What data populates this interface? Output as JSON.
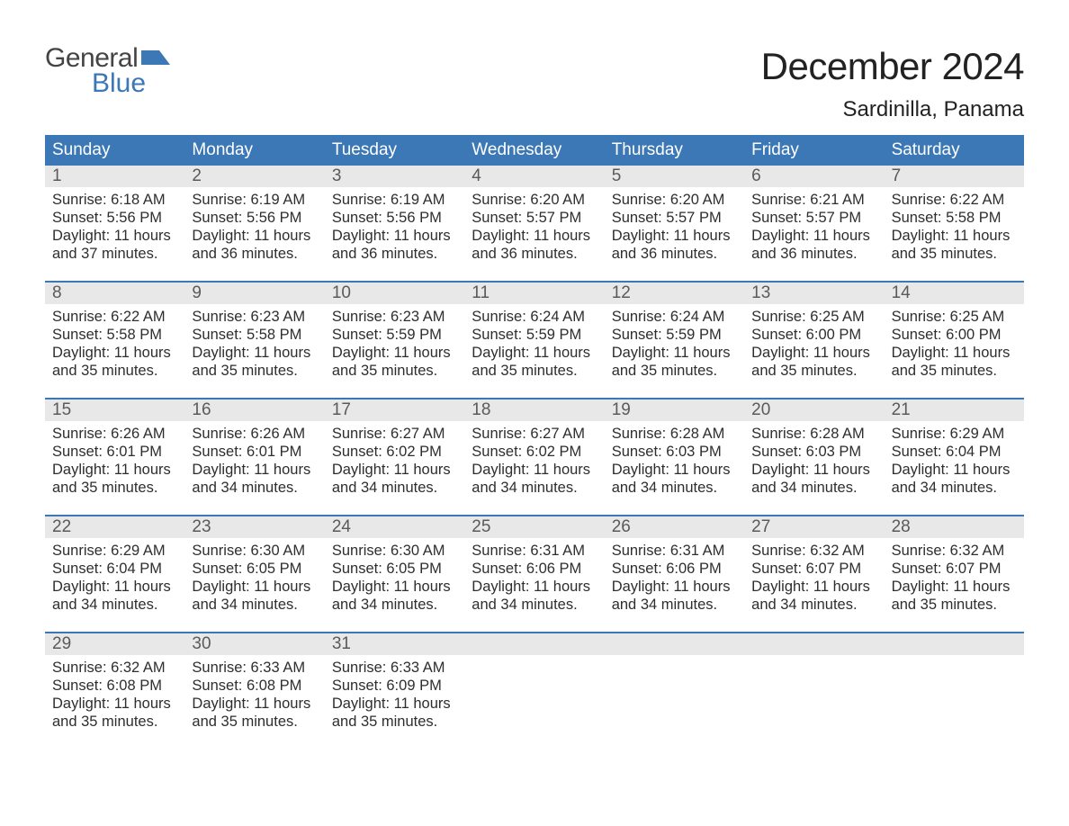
{
  "brand": {
    "line1": "General",
    "line2": "Blue",
    "brand_color": "#3b78b5"
  },
  "title": "December 2024",
  "subtitle": "Sardinilla, Panama",
  "colors": {
    "header_bg": "#3b78b5",
    "header_text": "#ffffff",
    "daynum_bg": "#e8e8e8",
    "daynum_text": "#5a5a5a",
    "body_text": "#2e2e2e",
    "week_divider": "#3b78b5",
    "page_bg": "#ffffff"
  },
  "weekdays": [
    "Sunday",
    "Monday",
    "Tuesday",
    "Wednesday",
    "Thursday",
    "Friday",
    "Saturday"
  ],
  "weeks": [
    [
      {
        "day": "1",
        "sunrise": "6:18 AM",
        "sunset": "5:56 PM",
        "dl1": "11 hours",
        "dl2": "37 minutes."
      },
      {
        "day": "2",
        "sunrise": "6:19 AM",
        "sunset": "5:56 PM",
        "dl1": "11 hours",
        "dl2": "36 minutes."
      },
      {
        "day": "3",
        "sunrise": "6:19 AM",
        "sunset": "5:56 PM",
        "dl1": "11 hours",
        "dl2": "36 minutes."
      },
      {
        "day": "4",
        "sunrise": "6:20 AM",
        "sunset": "5:57 PM",
        "dl1": "11 hours",
        "dl2": "36 minutes."
      },
      {
        "day": "5",
        "sunrise": "6:20 AM",
        "sunset": "5:57 PM",
        "dl1": "11 hours",
        "dl2": "36 minutes."
      },
      {
        "day": "6",
        "sunrise": "6:21 AM",
        "sunset": "5:57 PM",
        "dl1": "11 hours",
        "dl2": "36 minutes."
      },
      {
        "day": "7",
        "sunrise": "6:22 AM",
        "sunset": "5:58 PM",
        "dl1": "11 hours",
        "dl2": "35 minutes."
      }
    ],
    [
      {
        "day": "8",
        "sunrise": "6:22 AM",
        "sunset": "5:58 PM",
        "dl1": "11 hours",
        "dl2": "35 minutes."
      },
      {
        "day": "9",
        "sunrise": "6:23 AM",
        "sunset": "5:58 PM",
        "dl1": "11 hours",
        "dl2": "35 minutes."
      },
      {
        "day": "10",
        "sunrise": "6:23 AM",
        "sunset": "5:59 PM",
        "dl1": "11 hours",
        "dl2": "35 minutes."
      },
      {
        "day": "11",
        "sunrise": "6:24 AM",
        "sunset": "5:59 PM",
        "dl1": "11 hours",
        "dl2": "35 minutes."
      },
      {
        "day": "12",
        "sunrise": "6:24 AM",
        "sunset": "5:59 PM",
        "dl1": "11 hours",
        "dl2": "35 minutes."
      },
      {
        "day": "13",
        "sunrise": "6:25 AM",
        "sunset": "6:00 PM",
        "dl1": "11 hours",
        "dl2": "35 minutes."
      },
      {
        "day": "14",
        "sunrise": "6:25 AM",
        "sunset": "6:00 PM",
        "dl1": "11 hours",
        "dl2": "35 minutes."
      }
    ],
    [
      {
        "day": "15",
        "sunrise": "6:26 AM",
        "sunset": "6:01 PM",
        "dl1": "11 hours",
        "dl2": "35 minutes."
      },
      {
        "day": "16",
        "sunrise": "6:26 AM",
        "sunset": "6:01 PM",
        "dl1": "11 hours",
        "dl2": "34 minutes."
      },
      {
        "day": "17",
        "sunrise": "6:27 AM",
        "sunset": "6:02 PM",
        "dl1": "11 hours",
        "dl2": "34 minutes."
      },
      {
        "day": "18",
        "sunrise": "6:27 AM",
        "sunset": "6:02 PM",
        "dl1": "11 hours",
        "dl2": "34 minutes."
      },
      {
        "day": "19",
        "sunrise": "6:28 AM",
        "sunset": "6:03 PM",
        "dl1": "11 hours",
        "dl2": "34 minutes."
      },
      {
        "day": "20",
        "sunrise": "6:28 AM",
        "sunset": "6:03 PM",
        "dl1": "11 hours",
        "dl2": "34 minutes."
      },
      {
        "day": "21",
        "sunrise": "6:29 AM",
        "sunset": "6:04 PM",
        "dl1": "11 hours",
        "dl2": "34 minutes."
      }
    ],
    [
      {
        "day": "22",
        "sunrise": "6:29 AM",
        "sunset": "6:04 PM",
        "dl1": "11 hours",
        "dl2": "34 minutes."
      },
      {
        "day": "23",
        "sunrise": "6:30 AM",
        "sunset": "6:05 PM",
        "dl1": "11 hours",
        "dl2": "34 minutes."
      },
      {
        "day": "24",
        "sunrise": "6:30 AM",
        "sunset": "6:05 PM",
        "dl1": "11 hours",
        "dl2": "34 minutes."
      },
      {
        "day": "25",
        "sunrise": "6:31 AM",
        "sunset": "6:06 PM",
        "dl1": "11 hours",
        "dl2": "34 minutes."
      },
      {
        "day": "26",
        "sunrise": "6:31 AM",
        "sunset": "6:06 PM",
        "dl1": "11 hours",
        "dl2": "34 minutes."
      },
      {
        "day": "27",
        "sunrise": "6:32 AM",
        "sunset": "6:07 PM",
        "dl1": "11 hours",
        "dl2": "34 minutes."
      },
      {
        "day": "28",
        "sunrise": "6:32 AM",
        "sunset": "6:07 PM",
        "dl1": "11 hours",
        "dl2": "35 minutes."
      }
    ],
    [
      {
        "day": "29",
        "sunrise": "6:32 AM",
        "sunset": "6:08 PM",
        "dl1": "11 hours",
        "dl2": "35 minutes."
      },
      {
        "day": "30",
        "sunrise": "6:33 AM",
        "sunset": "6:08 PM",
        "dl1": "11 hours",
        "dl2": "35 minutes."
      },
      {
        "day": "31",
        "sunrise": "6:33 AM",
        "sunset": "6:09 PM",
        "dl1": "11 hours",
        "dl2": "35 minutes."
      },
      null,
      null,
      null,
      null
    ]
  ],
  "labels": {
    "sunrise": "Sunrise:",
    "sunset": "Sunset:",
    "daylight": "Daylight:",
    "and": "and"
  }
}
